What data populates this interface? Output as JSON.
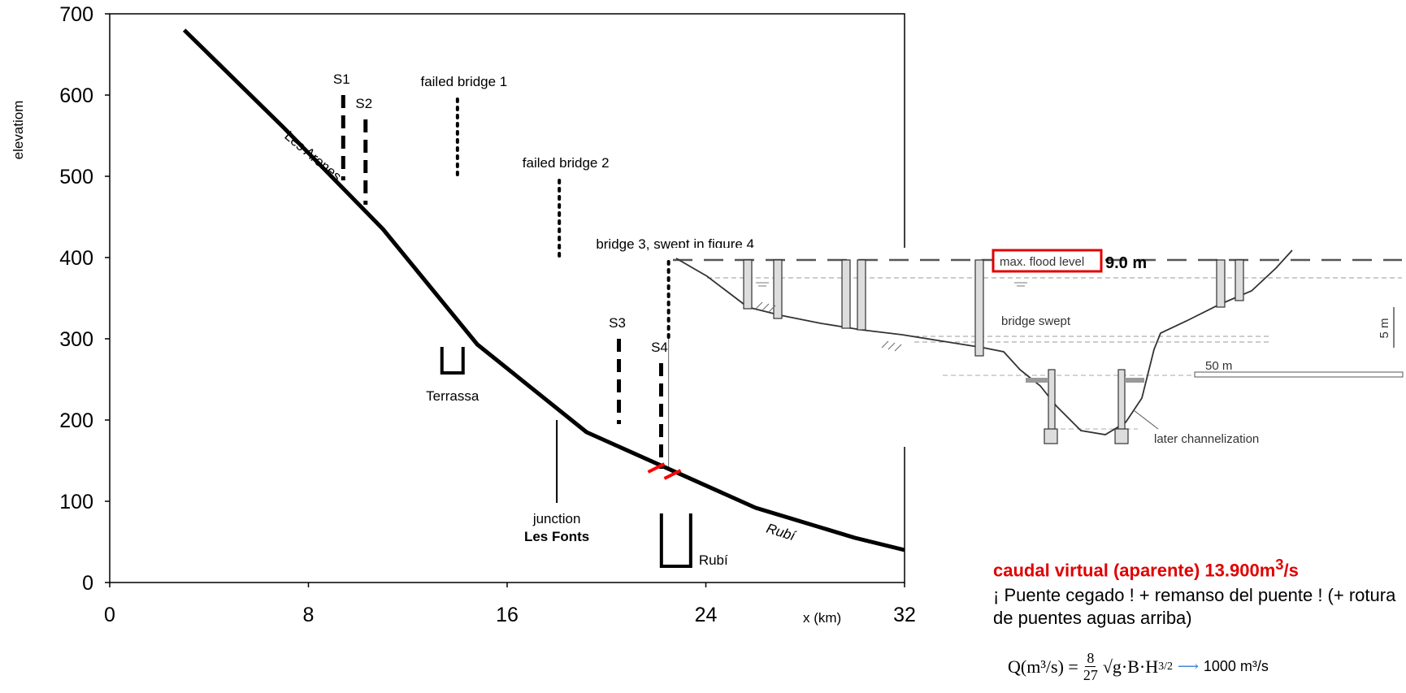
{
  "chart_data": {
    "type": "line",
    "title": "",
    "xlabel": "x (km)",
    "ylabel": "elevatiom",
    "xlim": [
      0,
      32
    ],
    "ylim": [
      0,
      700
    ],
    "xticks": [
      "0",
      "8",
      "16",
      "24",
      "32"
    ],
    "yticks": [
      "0",
      "100",
      "200",
      "300",
      "400",
      "500",
      "600",
      "700"
    ],
    "series": [
      {
        "x": [
          3,
          7,
          11,
          14.8,
          19.2,
          26,
          30,
          32
        ],
        "values": [
          680,
          560,
          435,
          293,
          185,
          92,
          55,
          40
        ]
      }
    ],
    "profile_labels": {
      "upper": "Les Arenes",
      "lower": "Rubí"
    },
    "sections": [
      {
        "label": "S1",
        "x": 9.4,
        "y_top": 600,
        "y_bottom": 495
      },
      {
        "label": "S2",
        "x": 10.3,
        "y_top": 570,
        "y_bottom": 465
      },
      {
        "label": "S3",
        "x": 20.5,
        "y_top": 300,
        "y_bottom": 195
      },
      {
        "label": "S4",
        "x": 22.2,
        "y_top": 270,
        "y_bottom": 140
      }
    ],
    "bridges": [
      {
        "label": "failed bridge 1",
        "x": 14,
        "y_top": 595,
        "y_bottom": 500
      },
      {
        "label": "failed bridge 2",
        "x": 18.1,
        "y_top": 495,
        "y_bottom": 400
      },
      {
        "label": "bridge 3, swept in figure 4",
        "x": 22.5,
        "y_top": 395,
        "y_bottom": 300
      }
    ],
    "towns": [
      {
        "label": "Terrassa",
        "x": 13.8,
        "y_top": 290,
        "y_bottom": 258
      },
      {
        "label": "Rubí",
        "x": 22.8,
        "y_top": 85,
        "y_bottom": 20
      }
    ],
    "junction": {
      "label_line1": "junction",
      "label_line2": "Les Fonts",
      "x": 18,
      "y_top": 200,
      "y_bottom": 98
    },
    "bridge_marker": {
      "x": 22.2,
      "y": 140,
      "color": "#ff0000"
    },
    "cross_section_inset": {
      "max_flood_label": "max. flood level",
      "flood_depth": "9.0 m",
      "bridge_swept": "bridge swept",
      "scale_vertical": "5 m",
      "scale_horizontal": "50 m",
      "channel_note": "later channelization"
    }
  },
  "notes": {
    "caudal_prefix": "caudal virtual (aparente) 13.900m",
    "caudal_sup": "3",
    "caudal_suffix": "/s",
    "remanso": "¡ Puente cegado ! + remanso del puente ! (+ rotura de puentes aguas arriba)",
    "formula_left": "Q(m³/s) =",
    "formula_num": "8",
    "formula_den": "27",
    "formula_right": "√g·B·H",
    "formula_exp": "3/2",
    "result": "1000 m³/s"
  }
}
